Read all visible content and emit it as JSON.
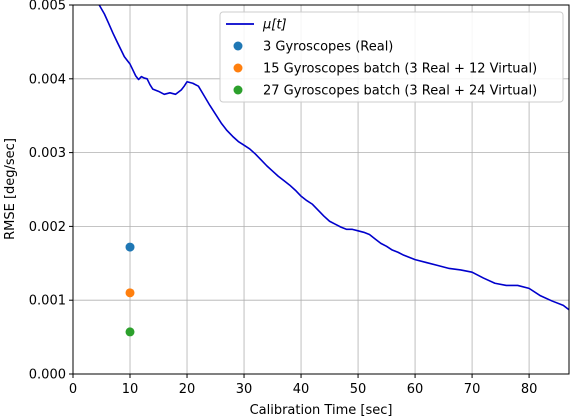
{
  "chart_data": {
    "type": "line",
    "title": "",
    "xlabel": "Calibration Time [sec]",
    "ylabel": "RMSE [deg/sec]",
    "xlim": [
      0,
      87
    ],
    "ylim": [
      0,
      0.005
    ],
    "grid": true,
    "legend_position": "top-right",
    "x_ticks": [
      {
        "value": 0,
        "label": "0"
      },
      {
        "value": 10,
        "label": "10"
      },
      {
        "value": 20,
        "label": "20"
      },
      {
        "value": 30,
        "label": "30"
      },
      {
        "value": 40,
        "label": "40"
      },
      {
        "value": 50,
        "label": "50"
      },
      {
        "value": 60,
        "label": "60"
      },
      {
        "value": 70,
        "label": "70"
      },
      {
        "value": 80,
        "label": "80"
      }
    ],
    "y_ticks": [
      {
        "value": 0,
        "label": "0.000"
      },
      {
        "value": 0.001,
        "label": "0.001"
      },
      {
        "value": 0.002,
        "label": "0.002"
      },
      {
        "value": 0.003,
        "label": "0.003"
      },
      {
        "value": 0.004,
        "label": "0.004"
      },
      {
        "value": 0.005,
        "label": "0.005"
      }
    ],
    "series": [
      {
        "name": "μ[t]",
        "type": "line",
        "color": "#0000cc",
        "x": [
          4.6,
          5.5,
          6.2,
          7.0,
          7.8,
          8.5,
          9.0,
          9.5,
          10.0,
          10.5,
          11.0,
          11.5,
          12.0,
          12.5,
          13.0,
          13.5,
          14.0,
          15.0,
          16.0,
          17.0,
          18.0,
          19.0,
          19.5,
          20.0,
          21.0,
          22.0,
          23.0,
          24.0,
          25.0,
          26.0,
          27.0,
          28.0,
          29.0,
          30.0,
          31.0,
          32.0,
          33.0,
          34.0,
          35.0,
          36.0,
          37.0,
          38.0,
          39.0,
          40.0,
          41.0,
          42.0,
          43.0,
          44.0,
          45.0,
          46.0,
          47.0,
          48.0,
          49.0,
          50.0,
          51.0,
          52.0,
          53.0,
          54.0,
          55.0,
          56.0,
          57.0,
          58.0,
          59.0,
          60.0,
          62.0,
          64.0,
          66.0,
          68.0,
          70.0,
          72.0,
          74.0,
          76.0,
          78.0,
          80.0,
          82.0,
          84.0,
          86.0,
          87.0
        ],
        "y": [
          0.005,
          0.00488,
          0.00476,
          0.00462,
          0.00449,
          0.00438,
          0.0043,
          0.00425,
          0.0042,
          0.00412,
          0.00404,
          0.00399,
          0.00403,
          0.00401,
          0.004,
          0.00392,
          0.00386,
          0.00383,
          0.00379,
          0.00381,
          0.00379,
          0.00385,
          0.0039,
          0.00396,
          0.00394,
          0.0039,
          0.00377,
          0.00364,
          0.00352,
          0.0034,
          0.0033,
          0.00322,
          0.00315,
          0.0031,
          0.00305,
          0.00298,
          0.0029,
          0.00282,
          0.00275,
          0.00268,
          0.00262,
          0.00256,
          0.00249,
          0.00241,
          0.00235,
          0.0023,
          0.00222,
          0.00214,
          0.00207,
          0.00203,
          0.00199,
          0.00196,
          0.00196,
          0.00194,
          0.00192,
          0.00189,
          0.00183,
          0.00177,
          0.00173,
          0.00168,
          0.00165,
          0.00161,
          0.00158,
          0.00155,
          0.00151,
          0.00147,
          0.00143,
          0.00141,
          0.00138,
          0.0013,
          0.00123,
          0.0012,
          0.0012,
          0.00116,
          0.00106,
          0.00099,
          0.00093,
          0.00087
        ]
      },
      {
        "name": "3 Gyroscopes (Real)",
        "type": "scatter",
        "color": "#1f77b4",
        "x": [
          10
        ],
        "y": [
          0.00172
        ]
      },
      {
        "name": "15 Gyroscopes batch (3 Real + 12 Virtual)",
        "type": "scatter",
        "color": "#ff7f0e",
        "x": [
          10
        ],
        "y": [
          0.0011
        ]
      },
      {
        "name": "27 Gyroscopes batch (3 Real + 24 Virtual)",
        "type": "scatter",
        "color": "#2ca02c",
        "x": [
          10
        ],
        "y": [
          0.00057
        ]
      }
    ]
  }
}
